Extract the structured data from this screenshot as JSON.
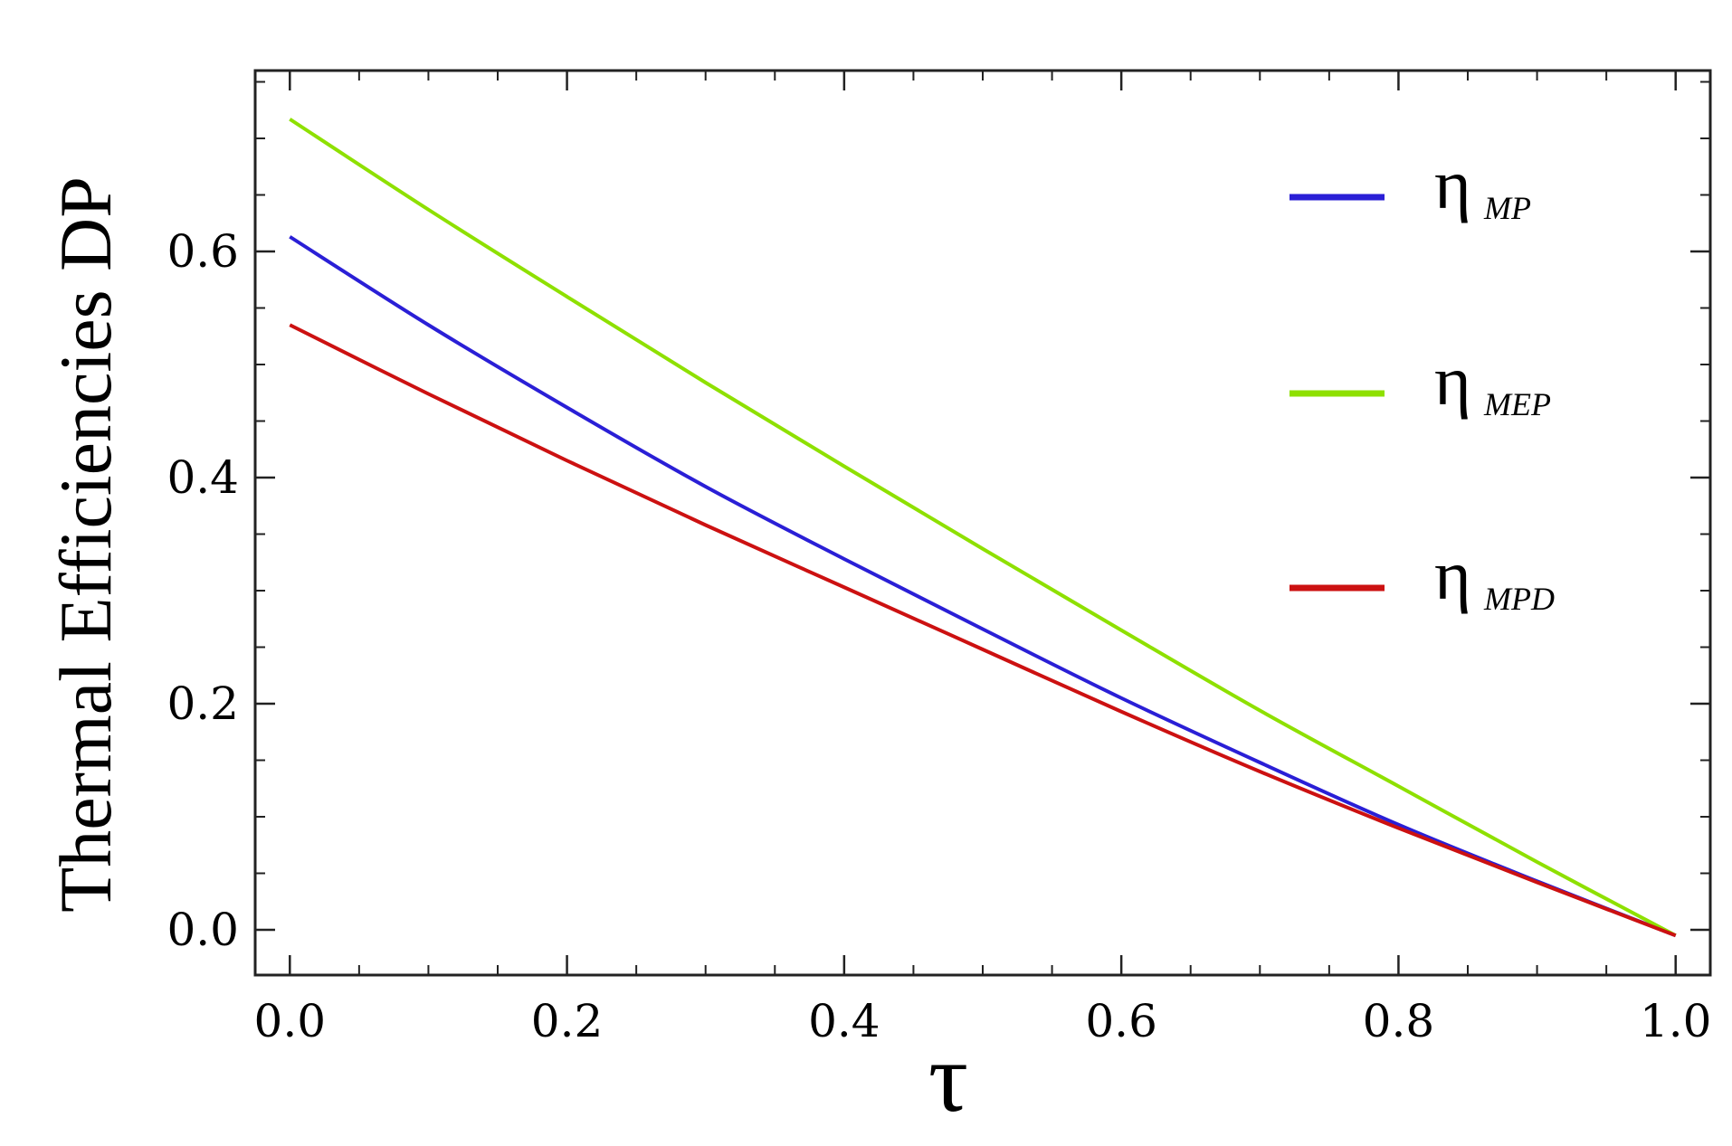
{
  "chart_data": {
    "type": "line",
    "title": "",
    "xlabel": "τ",
    "ylabel": "Thermal Efficiencies DP",
    "xlim": [
      -0.025,
      1.025
    ],
    "ylim": [
      -0.04,
      0.76
    ],
    "xticks": [
      "0.0",
      "0.2",
      "0.4",
      "0.6",
      "0.8",
      "1.0"
    ],
    "yticks": [
      "0.0",
      "0.2",
      "0.4",
      "0.6"
    ],
    "legend_position": "right",
    "grid": false,
    "series": [
      {
        "name": "η",
        "subscript": "MP",
        "color": "#2a1fd6",
        "x": [
          0.0,
          0.1,
          0.2,
          0.3,
          0.4,
          0.5,
          0.6,
          0.7,
          0.8,
          0.9,
          1.0
        ],
        "y": [
          0.613,
          0.535,
          0.462,
          0.392,
          0.328,
          0.266,
          0.205,
          0.148,
          0.093,
          0.043,
          -0.005
        ]
      },
      {
        "name": "η",
        "subscript": "MEP",
        "color": "#8ee000",
        "x": [
          0.0,
          0.1,
          0.2,
          0.3,
          0.4,
          0.5,
          0.6,
          0.7,
          0.8,
          0.9,
          1.0
        ],
        "y": [
          0.717,
          0.637,
          0.56,
          0.484,
          0.41,
          0.337,
          0.265,
          0.194,
          0.127,
          0.06,
          -0.005
        ]
      },
      {
        "name": "η",
        "subscript": "MPD",
        "color": "#cc1111",
        "x": [
          0.0,
          0.1,
          0.2,
          0.3,
          0.4,
          0.5,
          0.6,
          0.7,
          0.8,
          0.9,
          1.0
        ],
        "y": [
          0.535,
          0.474,
          0.415,
          0.358,
          0.303,
          0.248,
          0.193,
          0.14,
          0.09,
          0.042,
          -0.005
        ]
      }
    ]
  }
}
